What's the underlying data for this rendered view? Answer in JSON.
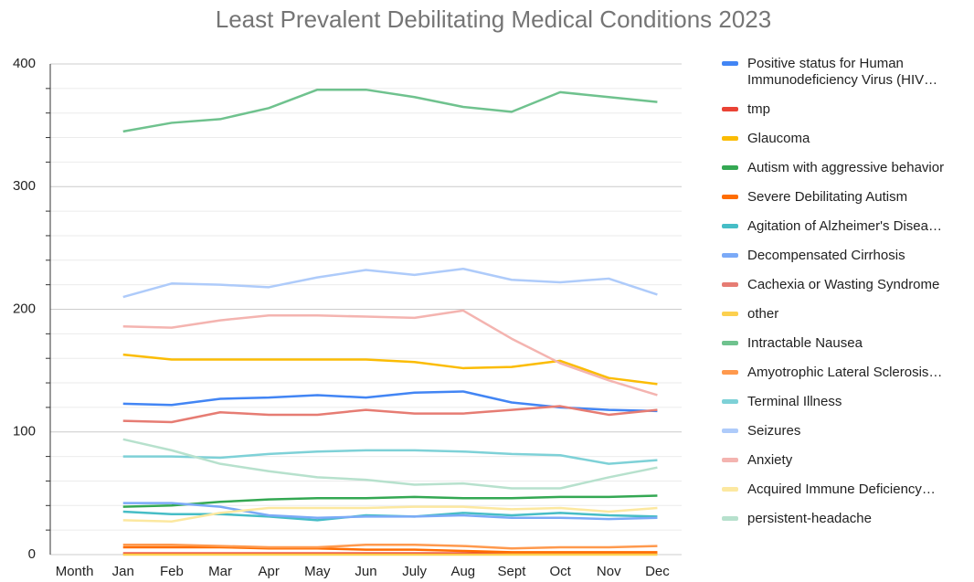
{
  "chart_data": {
    "type": "line",
    "title": "Least Prevalent Debilitating Medical Conditions 2023",
    "categories": [
      "Month",
      "Jan",
      "Feb",
      "Mar",
      "Apr",
      "May",
      "Jun",
      "July",
      "Aug",
      "Sept",
      "Oct",
      "Nov",
      "Dec"
    ],
    "ylim": [
      0,
      400
    ],
    "yticks": [
      0,
      100,
      200,
      300,
      400
    ],
    "minor_yticks": [
      20,
      40,
      60,
      80,
      120,
      140,
      160,
      180,
      220,
      240,
      260,
      280,
      320,
      340,
      360,
      380
    ],
    "grid": true,
    "legend": "right",
    "series": [
      {
        "name": "Positive status for Human Immunodeficiency Virus (HIV…",
        "color": "#4285f4",
        "values": [
          null,
          123,
          122,
          127,
          128,
          130,
          128,
          132,
          133,
          124,
          120,
          118,
          117
        ]
      },
      {
        "name": "tmp",
        "color": "#ea4335",
        "values": [
          null,
          1,
          1,
          1,
          1,
          1,
          1,
          1,
          1,
          1,
          1,
          1,
          1
        ]
      },
      {
        "name": "Glaucoma",
        "color": "#fbbc04",
        "values": [
          null,
          163,
          159,
          159,
          159,
          159,
          159,
          157,
          152,
          153,
          158,
          144,
          139
        ]
      },
      {
        "name": "Autism with aggressive behavior",
        "color": "#34a853",
        "values": [
          null,
          39,
          40,
          43,
          45,
          46,
          46,
          47,
          46,
          46,
          47,
          47,
          48
        ]
      },
      {
        "name": "Severe Debilitating Autism",
        "color": "#ff6d01",
        "values": [
          null,
          6,
          6,
          6,
          5,
          5,
          4,
          4,
          3,
          2,
          2,
          2,
          2
        ]
      },
      {
        "name": "Agitation of Alzheimer's Disea…",
        "color": "#46bdc6",
        "values": [
          null,
          35,
          33,
          33,
          31,
          28,
          32,
          31,
          34,
          32,
          34,
          32,
          31
        ]
      },
      {
        "name": "Decompensated Cirrhosis",
        "color": "#7baaf7",
        "values": [
          null,
          42,
          42,
          39,
          32,
          30,
          31,
          31,
          32,
          30,
          30,
          29,
          30
        ]
      },
      {
        "name": "Cachexia or Wasting Syndrome",
        "color": "#e67c73",
        "values": [
          null,
          109,
          108,
          116,
          114,
          114,
          118,
          115,
          115,
          118,
          121,
          114,
          118
        ]
      },
      {
        "name": "other",
        "color": "#fcd04f",
        "values": [
          null,
          0,
          0,
          0,
          0,
          0,
          0,
          0,
          0,
          0,
          0,
          0,
          0
        ]
      },
      {
        "name": "Intractable Nausea",
        "color": "#6fc28e",
        "values": [
          null,
          345,
          352,
          355,
          364,
          379,
          379,
          373,
          365,
          361,
          377,
          373,
          369
        ]
      },
      {
        "name": "Amyotrophic Lateral Sclerosis…",
        "color": "#ff994d",
        "values": [
          null,
          8,
          8,
          7,
          6,
          6,
          8,
          8,
          7,
          5,
          6,
          6,
          7
        ]
      },
      {
        "name": "Terminal Illness",
        "color": "#7ed1d7",
        "values": [
          null,
          80,
          80,
          79,
          82,
          84,
          85,
          85,
          84,
          82,
          81,
          74,
          77
        ]
      },
      {
        "name": "Seizures",
        "color": "#aecbfa",
        "values": [
          null,
          210,
          221,
          220,
          218,
          226,
          232,
          228,
          233,
          224,
          222,
          225,
          212
        ]
      },
      {
        "name": "Anxiety",
        "color": "#f4b4b0",
        "values": [
          null,
          186,
          185,
          191,
          195,
          195,
          194,
          193,
          199,
          176,
          156,
          142,
          130
        ]
      },
      {
        "name": "Acquired Immune Deficiency…",
        "color": "#fce8a0",
        "values": [
          null,
          28,
          27,
          34,
          38,
          38,
          38,
          39,
          39,
          37,
          38,
          35,
          38
        ]
      },
      {
        "name": "persistent-headache",
        "color": "#b7e1cd",
        "values": [
          null,
          94,
          85,
          74,
          68,
          63,
          61,
          57,
          58,
          54,
          54,
          63,
          71
        ]
      }
    ]
  }
}
